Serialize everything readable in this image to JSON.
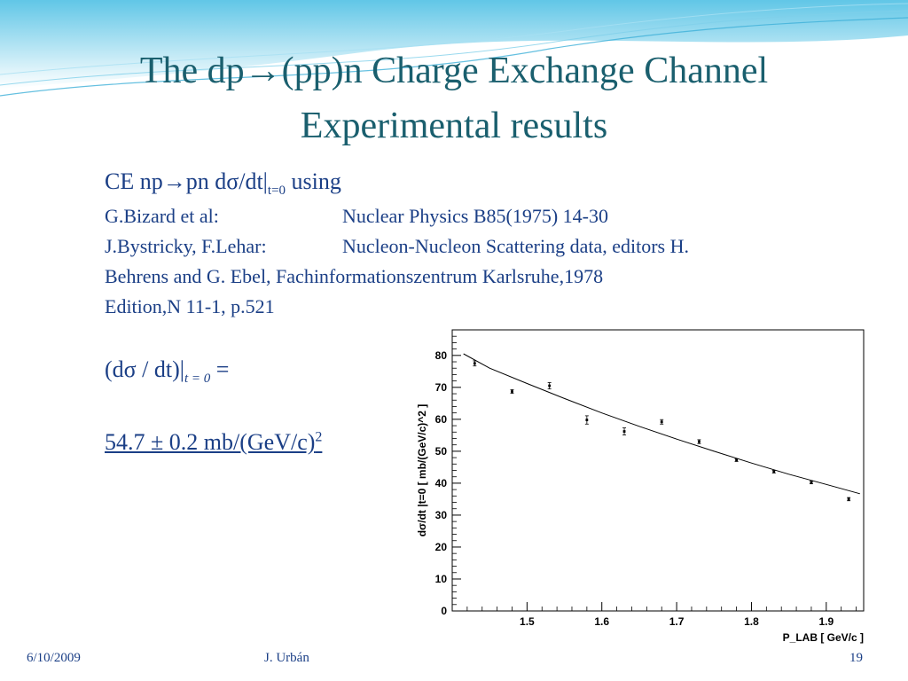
{
  "slide": {
    "title_line1": "The dp→(pp)n Charge Exchange Channel",
    "title_line2": "Experimental results",
    "heading": {
      "main": "CE  np→pn dσ/dt|",
      "sub": "t=0",
      "tail": "  using"
    },
    "refs": [
      {
        "left": "G.Bizard et al:",
        "right": "Nuclear Physics B85(1975) 14-30"
      },
      {
        "left": "J.Bystricky, F.Lehar:",
        "right": "Nucleon-Nucleon Scattering data, editors H."
      }
    ],
    "ref_line3": "Behrens and G. Ebel, Fachinformationszentrum Karlsruhe,1978",
    "ref_line4": "Edition,N 11-1, p.521",
    "formula": {
      "main": "(dσ / dt)|",
      "sub": "t = 0",
      "tail": " ="
    },
    "result": {
      "main": "54.7 ± 0.2  mb/(GeV/c)",
      "sup": "2"
    },
    "footer": {
      "date": "6/10/2009",
      "author": "J. Urbán",
      "page": "19"
    }
  },
  "colors": {
    "title": "#1a5f6e",
    "text": "#1b3f86",
    "wave": "#3fb0d8"
  },
  "chart_data": {
    "type": "scatter",
    "title": "",
    "xlabel": "P_LAB [ GeV/c ]",
    "ylabel": "dσ/dt |t=0 [ mb/(GeV/c)^2 ]",
    "xlim": [
      1.4,
      1.95
    ],
    "ylim": [
      0,
      88
    ],
    "x_ticks": [
      "1.5",
      "1.6",
      "1.7",
      "1.8",
      "1.9"
    ],
    "y_ticks": [
      "0",
      "10",
      "20",
      "30",
      "40",
      "50",
      "60",
      "70",
      "80"
    ],
    "grid": false,
    "series": [
      {
        "type": "points_with_error_bars",
        "x": [
          1.43,
          1.48,
          1.53,
          1.58,
          1.63,
          1.68,
          1.73,
          1.78,
          1.83,
          1.88,
          1.93
        ],
        "y": [
          77.5,
          68.7,
          70.5,
          59.8,
          56.2,
          59.2,
          53.0,
          47.2,
          43.6,
          40.2,
          35.0
        ],
        "err": [
          0.8,
          0.6,
          1.0,
          1.3,
          1.1,
          0.7,
          0.6,
          0.4,
          0.4,
          0.4,
          0.5
        ]
      },
      {
        "type": "fit_curve",
        "x": [
          1.415,
          1.45,
          1.5,
          1.55,
          1.6,
          1.65,
          1.7,
          1.75,
          1.8,
          1.85,
          1.9,
          1.945
        ],
        "y": [
          80.5,
          76.0,
          71.2,
          66.5,
          62.0,
          57.8,
          53.8,
          50.0,
          46.3,
          42.8,
          39.6,
          36.7
        ]
      }
    ]
  }
}
